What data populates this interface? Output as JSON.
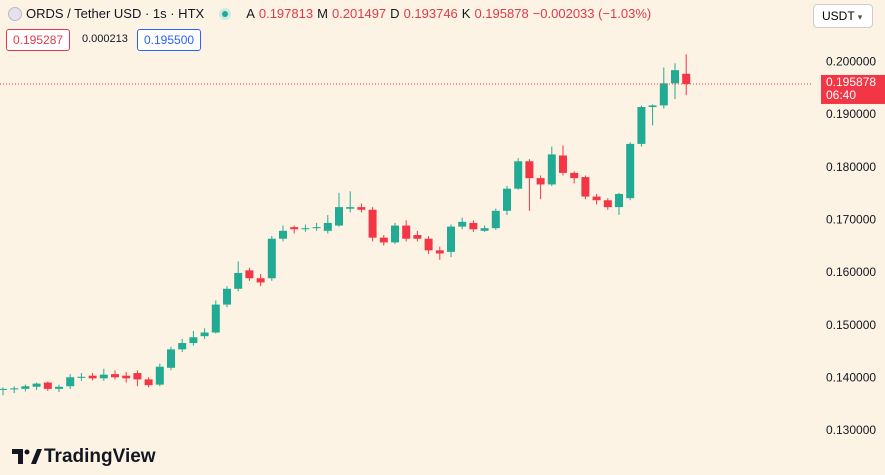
{
  "toolbar": {
    "symbol": "ORDS / Tether USD · 1s · HTX",
    "open_label": "A",
    "high_label": "M",
    "low_label": "D",
    "close_label": "K",
    "change": "−0.002033 (−1.03%)",
    "sell": "0.195287",
    "spread": "0.000213",
    "buy": "0.195500",
    "currency": "USDT",
    "countdown": "06:40",
    "brand": "TradingView"
  },
  "chart_data": {
    "type": "candlestick",
    "up_color": "#22ab94",
    "down_color": "#f23645",
    "ylim": [
      0.1226,
      0.2065
    ],
    "yticks": [
      {
        "value": 0.13,
        "label": "0.130000"
      },
      {
        "value": 0.14,
        "label": "0.140000"
      },
      {
        "value": 0.15,
        "label": "0.150000"
      },
      {
        "value": 0.16,
        "label": "0.160000"
      },
      {
        "value": 0.17,
        "label": "0.170000"
      },
      {
        "value": 0.18,
        "label": "0.180000"
      },
      {
        "value": 0.19,
        "label": "0.190000"
      },
      {
        "value": 0.2,
        "label": "0.200000"
      }
    ],
    "grid": false,
    "open": [
      0.1378,
      0.1379,
      0.138,
      0.1384,
      0.1392,
      0.138,
      0.1385,
      0.1401,
      0.1405,
      0.14,
      0.1408,
      0.1405,
      0.141,
      0.1398,
      0.1388,
      0.142,
      0.1455,
      0.1467,
      0.148,
      0.1487,
      0.154,
      0.157,
      0.1605,
      0.159,
      0.159,
      0.1665,
      0.1687,
      0.1683,
      0.1685,
      0.168,
      0.169,
      0.1722,
      0.1725,
      0.172,
      0.1667,
      0.1658,
      0.169,
      0.1672,
      0.1665,
      0.1643,
      0.164,
      0.1688,
      0.1695,
      0.168,
      0.1685,
      0.1718,
      0.176,
      0.1812,
      0.178,
      0.1768,
      0.1823,
      0.179,
      0.1782,
      0.1745,
      0.1738,
      0.1725,
      0.1742,
      0.1845,
      0.1915,
      0.1918,
      0.196,
      0.197813
    ],
    "high": [
      0.1383,
      0.1385,
      0.1388,
      0.1392,
      0.1394,
      0.1388,
      0.1408,
      0.141,
      0.141,
      0.1418,
      0.1415,
      0.1412,
      0.1415,
      0.1402,
      0.1428,
      0.146,
      0.1475,
      0.149,
      0.1495,
      0.1548,
      0.1575,
      0.1622,
      0.161,
      0.1598,
      0.167,
      0.169,
      0.169,
      0.1692,
      0.1695,
      0.171,
      0.1752,
      0.1755,
      0.1732,
      0.1725,
      0.1672,
      0.1695,
      0.17,
      0.168,
      0.167,
      0.165,
      0.1692,
      0.1705,
      0.17,
      0.169,
      0.1722,
      0.1765,
      0.1818,
      0.1816,
      0.1785,
      0.184,
      0.1842,
      0.1793,
      0.1785,
      0.175,
      0.1742,
      0.1752,
      0.1848,
      0.1918,
      0.192,
      0.199,
      0.1998,
      0.201497
    ],
    "low": [
      0.1368,
      0.1372,
      0.1375,
      0.1378,
      0.1376,
      0.1374,
      0.138,
      0.1395,
      0.1396,
      0.1395,
      0.1398,
      0.1392,
      0.1385,
      0.1383,
      0.1385,
      0.1415,
      0.145,
      0.1462,
      0.1475,
      0.1485,
      0.1535,
      0.1565,
      0.1585,
      0.1575,
      0.1585,
      0.166,
      0.1675,
      0.1678,
      0.168,
      0.1675,
      0.1688,
      0.1715,
      0.1715,
      0.166,
      0.1652,
      0.1655,
      0.166,
      0.166,
      0.1636,
      0.1625,
      0.163,
      0.1683,
      0.1678,
      0.1678,
      0.1682,
      0.171,
      0.1758,
      0.1718,
      0.174,
      0.1765,
      0.1785,
      0.177,
      0.174,
      0.173,
      0.172,
      0.171,
      0.1738,
      0.184,
      0.188,
      0.1912,
      0.193,
      0.193746
    ],
    "close": [
      0.138,
      0.1381,
      0.1385,
      0.139,
      0.138,
      0.1384,
      0.1402,
      0.1403,
      0.14,
      0.1407,
      0.1402,
      0.14,
      0.1398,
      0.1387,
      0.1422,
      0.1455,
      0.1467,
      0.1478,
      0.1487,
      0.154,
      0.157,
      0.16,
      0.159,
      0.1582,
      0.1665,
      0.168,
      0.1683,
      0.1685,
      0.1687,
      0.1695,
      0.1725,
      0.1725,
      0.172,
      0.1667,
      0.1658,
      0.169,
      0.1665,
      0.1665,
      0.1643,
      0.1637,
      0.1688,
      0.1697,
      0.1683,
      0.1685,
      0.1718,
      0.176,
      0.1812,
      0.178,
      0.1768,
      0.1825,
      0.179,
      0.178,
      0.1745,
      0.1738,
      0.1725,
      0.175,
      0.1845,
      0.1915,
      0.1918,
      0.196,
      0.1985,
      0.195878
    ]
  }
}
